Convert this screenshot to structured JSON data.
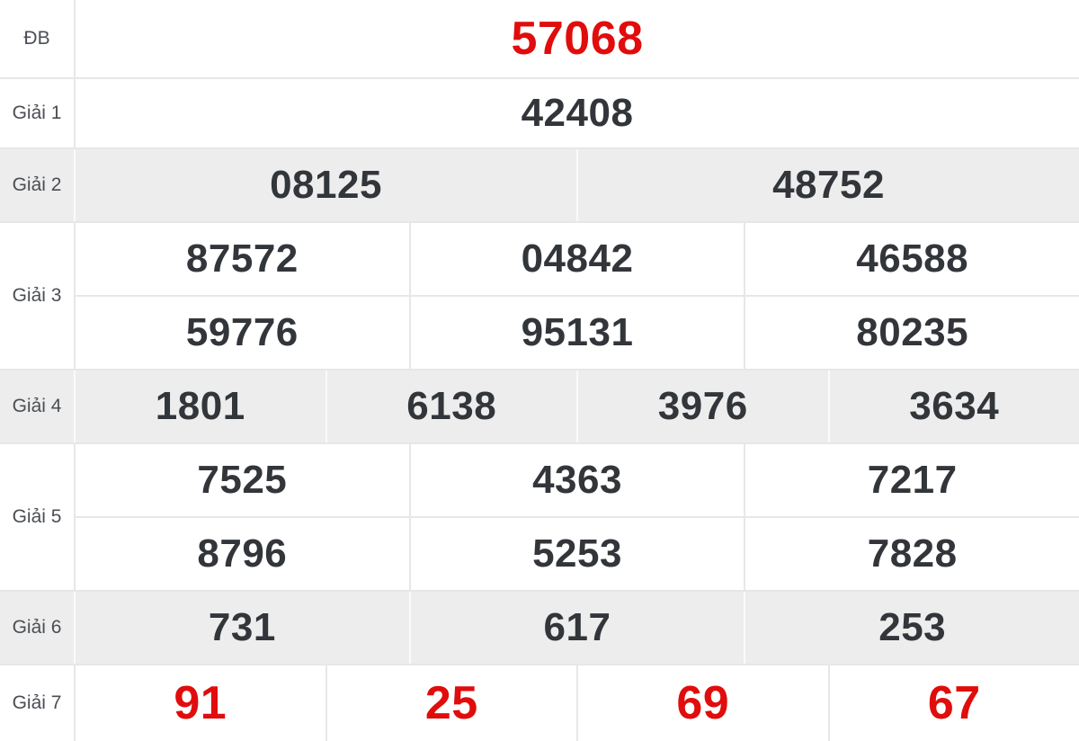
{
  "table": {
    "rows": [
      {
        "label": "ĐB",
        "lines": [
          [
            "57068"
          ]
        ]
      },
      {
        "label": "Giải 1",
        "lines": [
          [
            "42408"
          ]
        ]
      },
      {
        "label": "Giải 2",
        "lines": [
          [
            "08125",
            "48752"
          ]
        ]
      },
      {
        "label": "Giải 3",
        "lines": [
          [
            "87572",
            "04842",
            "46588"
          ],
          [
            "59776",
            "95131",
            "80235"
          ]
        ]
      },
      {
        "label": "Giải 4",
        "lines": [
          [
            "1801",
            "6138",
            "3976",
            "3634"
          ]
        ]
      },
      {
        "label": "Giải 5",
        "lines": [
          [
            "7525",
            "4363",
            "7217"
          ],
          [
            "8796",
            "5253",
            "7828"
          ]
        ]
      },
      {
        "label": "Giải 6",
        "lines": [
          [
            "731",
            "617",
            "253"
          ]
        ]
      },
      {
        "label": "Giải 7",
        "lines": [
          [
            "91",
            "25",
            "69",
            "67"
          ]
        ]
      }
    ],
    "colors": {
      "highlight_red": "#e10c0c",
      "number_dark": "#323539",
      "label_gray": "#4a4e54",
      "stripe_bg": "#ededed",
      "border": "#e7e7e7"
    }
  }
}
